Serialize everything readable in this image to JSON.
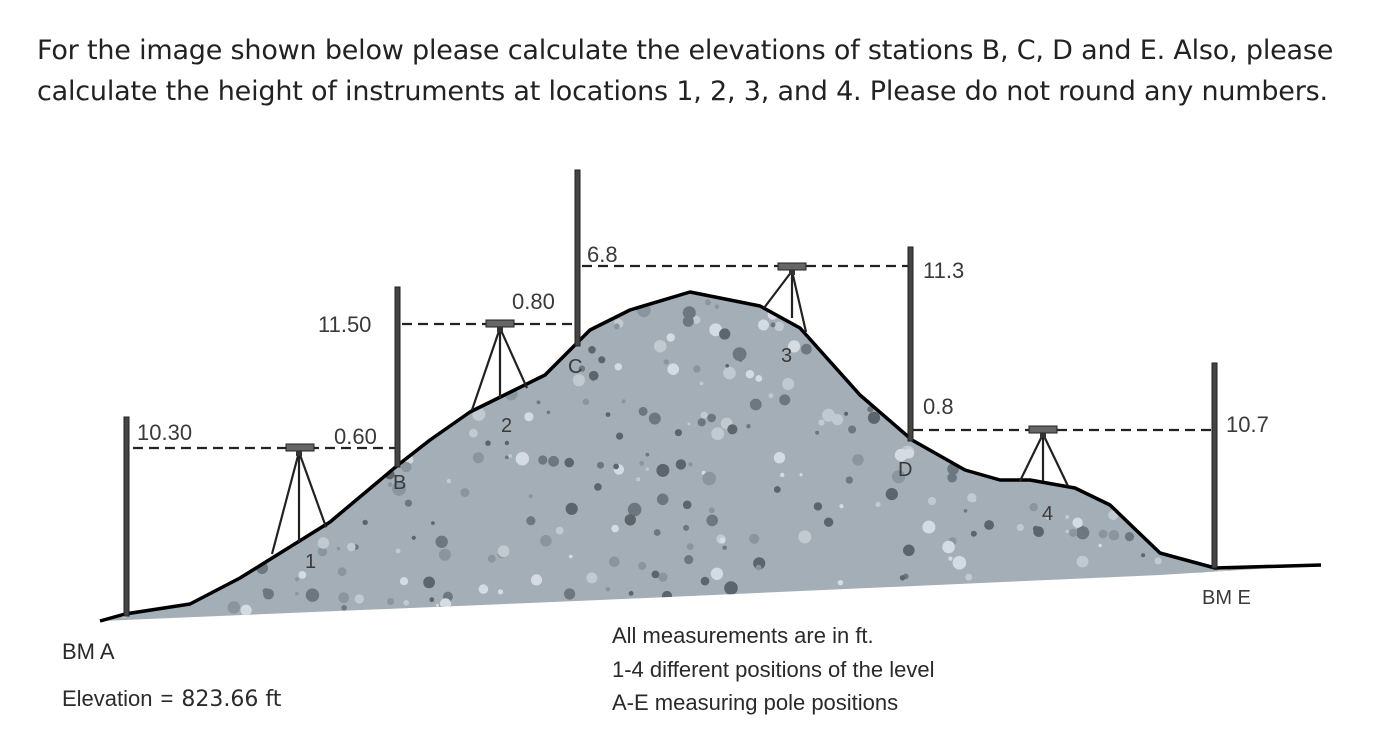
{
  "question": {
    "text": "For the image shown below please calculate the elevations of stations B, C, D and E. Also, please calculate the height of instruments at locations 1, 2, 3, and 4. Please do not round any numbers."
  },
  "diagram": {
    "rod_readings": {
      "a_backsight": "10.30",
      "b_foresight": "0.60",
      "b_backsight": "11.50",
      "c_foresight": "0.80",
      "c_backsight": "6.8",
      "d_foresight": "11.3",
      "d_backsight": "0.8",
      "e_foresight": "10.7"
    },
    "stations": {
      "b": "B",
      "c": "C",
      "d": "D",
      "e": "BM E"
    },
    "instrument_positions": [
      "1",
      "2",
      "3",
      "4"
    ],
    "benchmark": {
      "name": "BM A",
      "elevation_label": "Elevation",
      "equals": "=",
      "elevation_value": "823.66 ft"
    },
    "notes": [
      "All measurements are in ft.",
      "1-4 different positions of the level",
      "A-E measuring pole positions"
    ]
  },
  "colors": {
    "terrain_fill": "#a3aeb7",
    "terrain_outline": "#000000",
    "pebble_dark": "#5c646c",
    "pebble_light": "#d4dbe2",
    "sight_line": "#222222",
    "text": "#222222"
  }
}
